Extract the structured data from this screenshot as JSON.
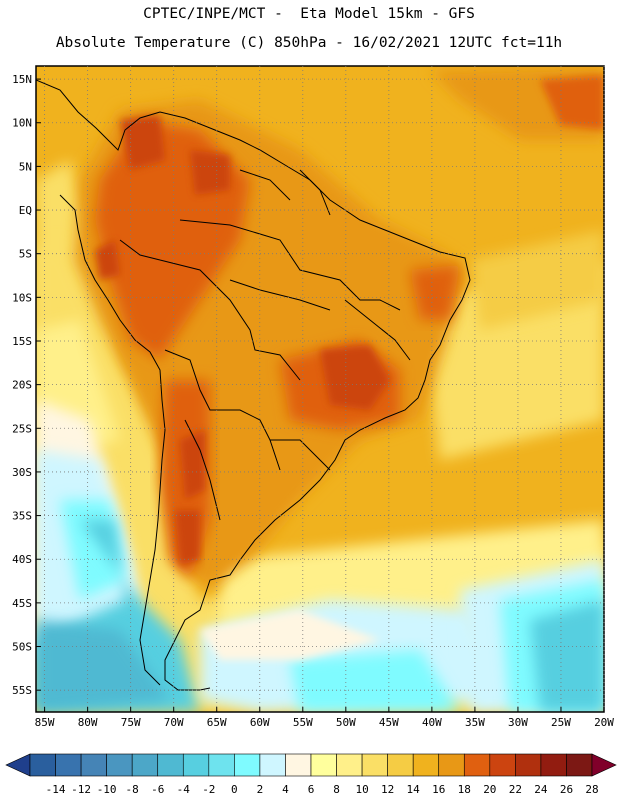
{
  "header": {
    "line1": "CPTEC/INPE/MCT -  Eta Model 15km - GFS",
    "line2": "Absolute Temperature (C) 850hPa - 16/02/2021 12UTC fct=11h"
  },
  "map": {
    "lat_labels": [
      "15N",
      "10N",
      "5N",
      "EQ",
      "5S",
      "10S",
      "15S",
      "20S",
      "25S",
      "30S",
      "35S",
      "40S",
      "45S",
      "50S",
      "55S"
    ],
    "lon_labels": [
      "85W",
      "80W",
      "75W",
      "70W",
      "65W",
      "60W",
      "55W",
      "50W",
      "45W",
      "40W",
      "35W",
      "30W",
      "25W",
      "20W"
    ],
    "grid": "dotted",
    "domain": {
      "lat": [
        -57.5,
        16.5
      ],
      "lon": [
        -86,
        -20
      ]
    }
  },
  "colorbar": {
    "ticks": [
      "-14",
      "-12",
      "-10",
      "-8",
      "-6",
      "-4",
      "-2",
      "0",
      "2",
      "4",
      "6",
      "8",
      "10",
      "12",
      "14",
      "16",
      "18",
      "20",
      "22",
      "24",
      "26",
      "28"
    ],
    "colors": [
      "#1f3f8c",
      "#2a5f9e",
      "#3873ae",
      "#4584b6",
      "#4a96c0",
      "#4ca7c8",
      "#4fb9d2",
      "#57cfe0",
      "#6ee3ee",
      "#7ffbff",
      "#cff6ff",
      "#fff6e2",
      "#ffff9d",
      "#fff08a",
      "#fadf66",
      "#f5cc44",
      "#f0b21e",
      "#e89816",
      "#e06010",
      "#cc4410",
      "#b0300e",
      "#921c10",
      "#7c1814",
      "#80002a"
    ]
  }
}
